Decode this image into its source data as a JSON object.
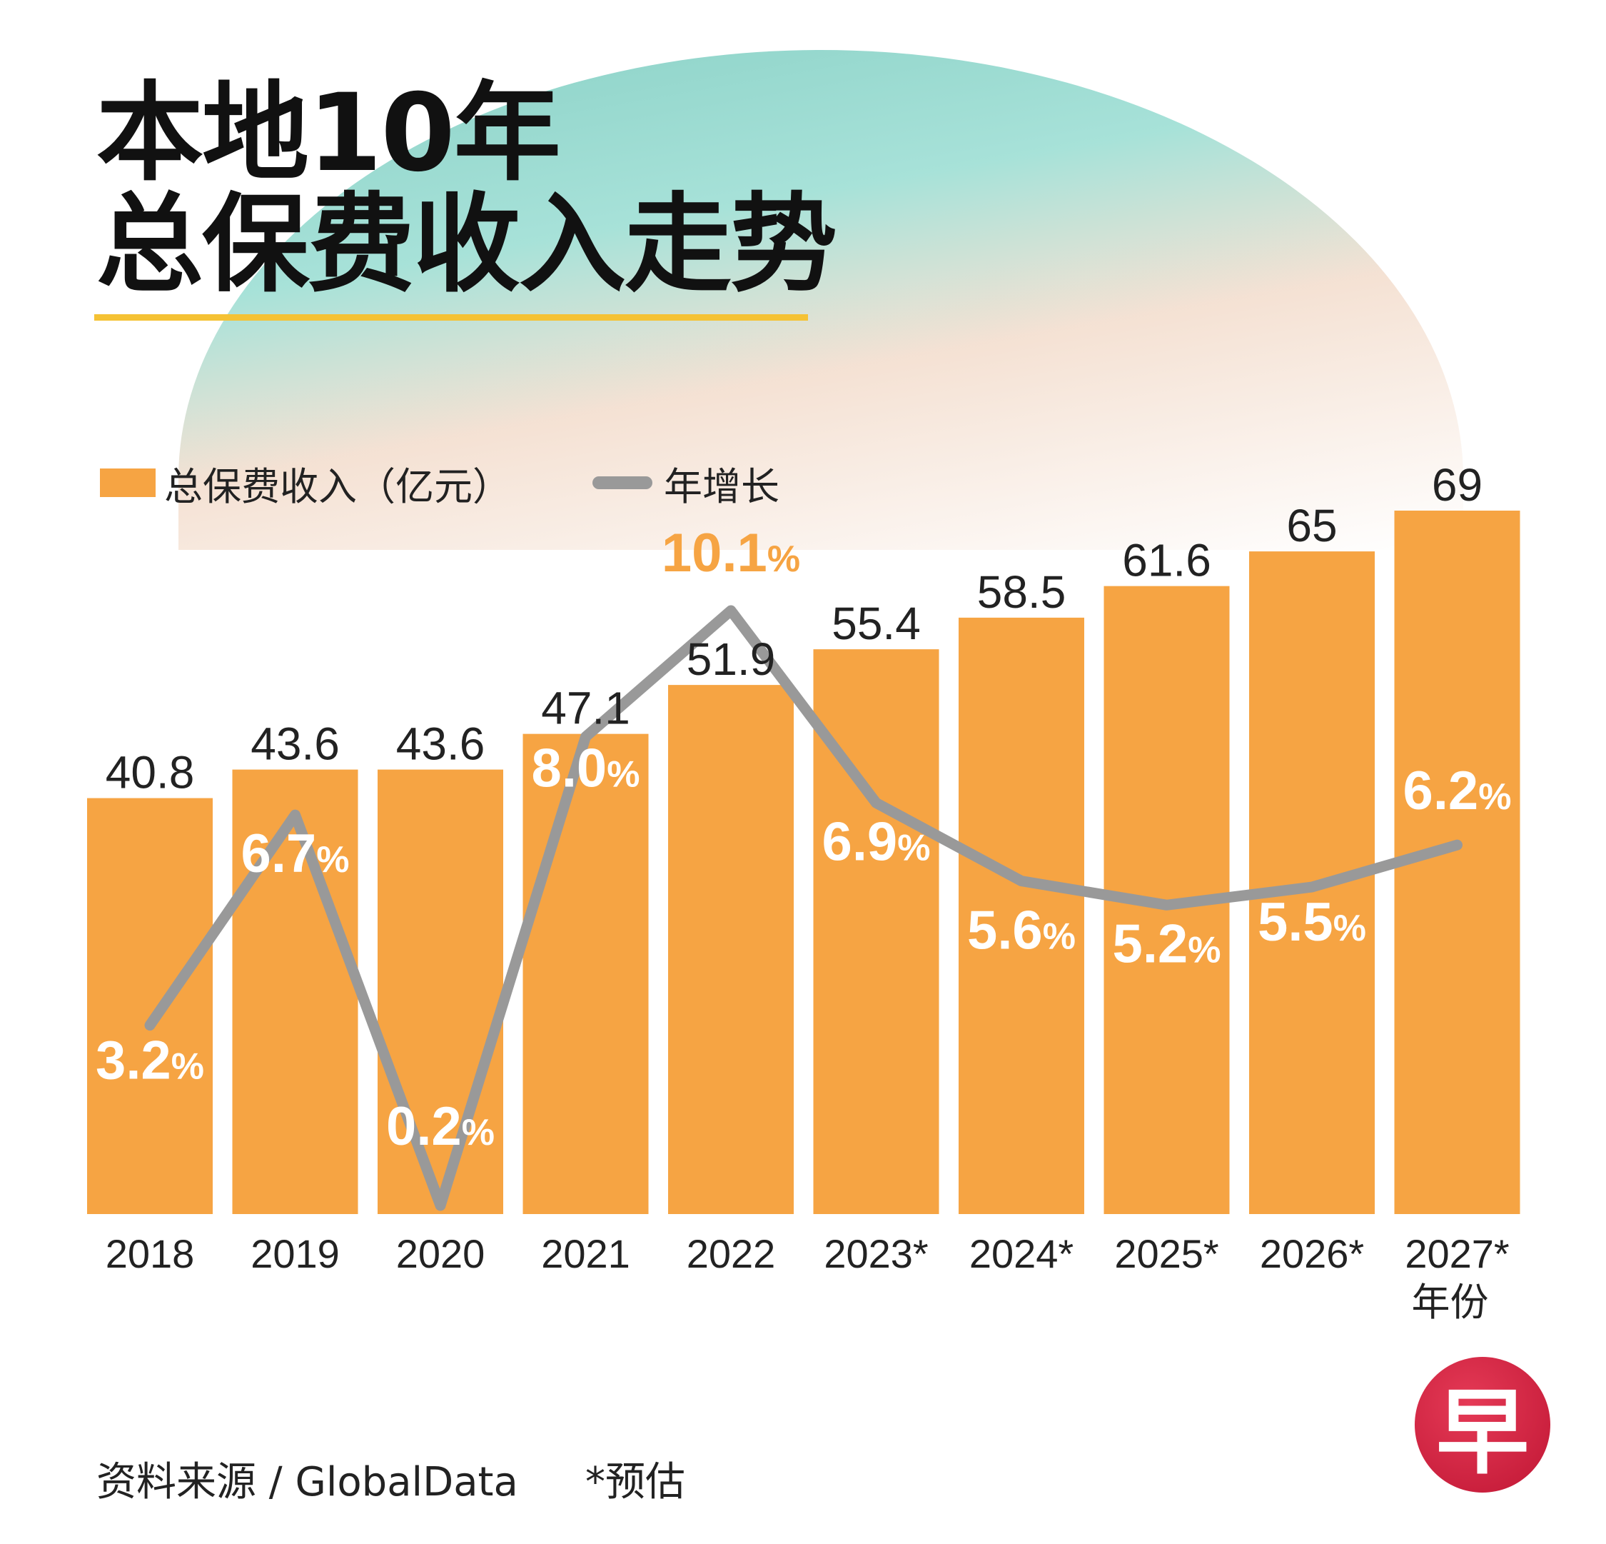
{
  "title_line1": "本地10年",
  "title_line2": "总保费收入走势",
  "legend": {
    "bar_label": "总保费收入（亿元）",
    "line_label": "年增长"
  },
  "axis_label": "年份",
  "footer": {
    "source": "资料来源 / GlobalData",
    "estimate_note": "*预估"
  },
  "logo_text": "早",
  "colors": {
    "bar": "#f6a443",
    "line": "#999999",
    "highlight_label": "#f6a443",
    "growth_label": "#ffffff"
  },
  "chart_data": {
    "type": "bar",
    "categories": [
      "2018",
      "2019",
      "2020",
      "2021",
      "2022",
      "2023*",
      "2024*",
      "2025*",
      "2026*",
      "2027*"
    ],
    "series": [
      {
        "name": "总保费收入（亿元）",
        "type": "bar",
        "values": [
          40.8,
          43.6,
          43.6,
          47.1,
          51.9,
          55.4,
          58.5,
          61.6,
          65,
          69
        ],
        "labels": [
          "40.8",
          "43.6",
          "43.6",
          "47.1",
          "51.9",
          "55.4",
          "58.5",
          "61.6",
          "65",
          "69"
        ]
      },
      {
        "name": "年增长",
        "type": "line",
        "values": [
          3.2,
          6.7,
          0.2,
          8.0,
          10.1,
          6.9,
          5.6,
          5.2,
          5.5,
          6.2
        ],
        "labels": [
          "3.2",
          "6.7",
          "0.2",
          "8.0",
          "10.1",
          "6.9",
          "5.6",
          "5.2",
          "5.5",
          "6.2"
        ],
        "unit": "%"
      }
    ],
    "bar_ylim": [
      0,
      69
    ],
    "line_ylim": [
      0,
      10.1
    ],
    "grid": false,
    "legend_position": "top-left"
  }
}
